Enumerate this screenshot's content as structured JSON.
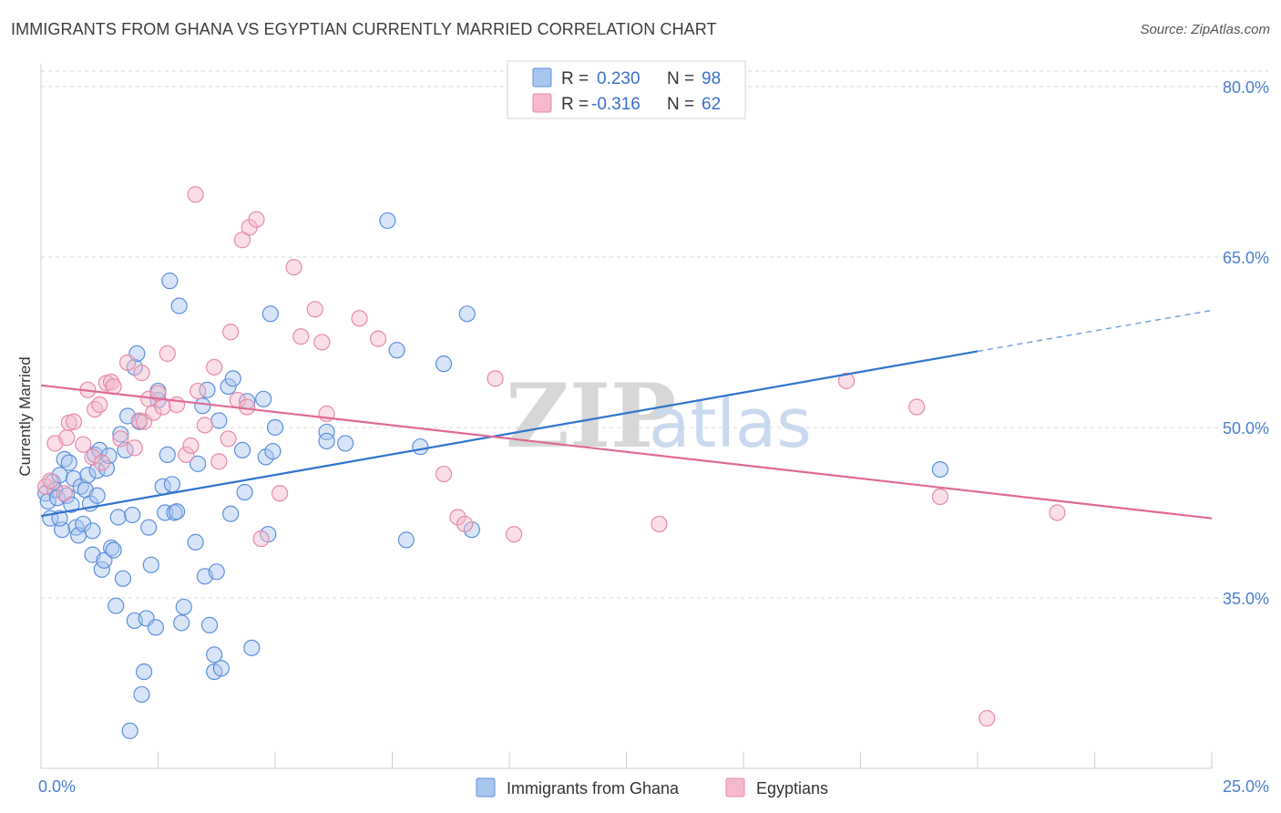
{
  "header": {
    "title": "IMMIGRANTS FROM GHANA VS EGYPTIAN CURRENTLY MARRIED CORRELATION CHART",
    "source": "Source: ZipAtlas.com"
  },
  "watermark": {
    "zip": "ZIP",
    "atlas": "atlas"
  },
  "legend_top": {
    "rows": [
      {
        "r_label": "R =",
        "r_value": "0.230",
        "n_label": "N =",
        "n_value": "98"
      },
      {
        "r_label": "R =",
        "r_value": "-0.316",
        "n_label": "N =",
        "n_value": "62"
      }
    ]
  },
  "legend_bottom": {
    "items": [
      "Immigrants from Ghana",
      "Egyptians"
    ]
  },
  "colors": {
    "ghana_fill": "#a9c6ef",
    "ghana_stroke": "#5b8fdc",
    "ghana_line": "#2f74d0",
    "egypt_fill": "#f5b9cc",
    "egypt_stroke": "#e88aa8",
    "egypt_line": "#e06a95",
    "grid": "#d9d9d9",
    "axis_text": "#4a7fd0"
  },
  "chart_data": {
    "type": "scatter",
    "title": "IMMIGRANTS FROM GHANA VS EGYPTIAN CURRENTLY MARRIED CORRELATION CHART",
    "xlabel": "",
    "ylabel": "Currently Married",
    "xlim": [
      0,
      25
    ],
    "ylim": [
      20,
      82
    ],
    "x_tick_labels": [
      "0.0%",
      "25.0%"
    ],
    "y_ticks": [
      35,
      50,
      65,
      80
    ],
    "y_tick_labels": [
      "35.0%",
      "50.0%",
      "65.0%",
      "80.0%"
    ],
    "grid": true,
    "legend_placement": "top-center",
    "series": [
      {
        "name": "Immigrants from Ghana",
        "r": 0.23,
        "n": 98,
        "trend": {
          "x0": 0,
          "y0": 42.2,
          "x1": 20,
          "y1": 56.7,
          "dashed_to_x": 25,
          "dashed_to_y": 60.3
        },
        "points": [
          [
            0.1,
            44.2
          ],
          [
            0.15,
            43.5
          ],
          [
            0.2,
            42.0
          ],
          [
            0.25,
            45.2
          ],
          [
            0.3,
            44.5
          ],
          [
            0.35,
            43.8
          ],
          [
            0.4,
            45.8
          ],
          [
            0.45,
            41.0
          ],
          [
            0.5,
            47.2
          ],
          [
            0.55,
            44.0
          ],
          [
            0.6,
            46.9
          ],
          [
            0.65,
            43.2
          ],
          [
            0.7,
            45.5
          ],
          [
            0.75,
            41.2
          ],
          [
            0.8,
            40.5
          ],
          [
            0.85,
            44.8
          ],
          [
            0.9,
            41.5
          ],
          [
            0.95,
            44.5
          ],
          [
            1.0,
            45.8
          ],
          [
            1.05,
            43.3
          ],
          [
            1.1,
            40.9
          ],
          [
            1.1,
            38.8
          ],
          [
            1.15,
            47.6
          ],
          [
            1.2,
            46.2
          ],
          [
            1.25,
            48.0
          ],
          [
            1.3,
            37.5
          ],
          [
            1.35,
            38.3
          ],
          [
            1.4,
            46.4
          ],
          [
            1.45,
            47.5
          ],
          [
            1.5,
            39.4
          ],
          [
            1.55,
            39.2
          ],
          [
            1.6,
            34.3
          ],
          [
            1.65,
            42.1
          ],
          [
            1.7,
            49.4
          ],
          [
            1.75,
            36.7
          ],
          [
            1.8,
            48.0
          ],
          [
            1.85,
            51.0
          ],
          [
            1.9,
            23.3
          ],
          [
            1.95,
            42.3
          ],
          [
            2.0,
            33.0
          ],
          [
            2.0,
            55.3
          ],
          [
            2.05,
            56.5
          ],
          [
            2.1,
            50.5
          ],
          [
            2.15,
            26.5
          ],
          [
            2.2,
            28.5
          ],
          [
            2.25,
            33.2
          ],
          [
            2.3,
            41.2
          ],
          [
            2.35,
            37.9
          ],
          [
            2.45,
            32.4
          ],
          [
            2.5,
            52.4
          ],
          [
            2.5,
            53.2
          ],
          [
            2.6,
            44.8
          ],
          [
            2.65,
            42.5
          ],
          [
            2.7,
            47.6
          ],
          [
            2.75,
            62.9
          ],
          [
            2.85,
            42.5
          ],
          [
            2.9,
            42.6
          ],
          [
            2.95,
            60.7
          ],
          [
            3.0,
            32.8
          ],
          [
            3.05,
            34.2
          ],
          [
            3.3,
            39.9
          ],
          [
            3.35,
            46.8
          ],
          [
            3.45,
            51.9
          ],
          [
            3.5,
            36.9
          ],
          [
            3.55,
            53.3
          ],
          [
            3.6,
            32.6
          ],
          [
            3.7,
            30.0
          ],
          [
            3.7,
            28.5
          ],
          [
            3.75,
            37.3
          ],
          [
            3.8,
            50.6
          ],
          [
            3.85,
            28.8
          ],
          [
            4.0,
            53.6
          ],
          [
            4.05,
            42.4
          ],
          [
            4.1,
            54.3
          ],
          [
            4.3,
            48.0
          ],
          [
            4.35,
            44.3
          ],
          [
            4.4,
            52.3
          ],
          [
            4.5,
            30.6
          ],
          [
            4.75,
            52.5
          ],
          [
            4.8,
            47.4
          ],
          [
            4.85,
            40.6
          ],
          [
            4.9,
            60.0
          ],
          [
            4.95,
            47.9
          ],
          [
            5.0,
            50.0
          ],
          [
            6.1,
            49.6
          ],
          [
            6.1,
            48.8
          ],
          [
            6.5,
            48.6
          ],
          [
            7.4,
            68.2
          ],
          [
            7.6,
            56.8
          ],
          [
            7.8,
            40.1
          ],
          [
            8.1,
            48.3
          ],
          [
            8.6,
            55.6
          ],
          [
            9.1,
            60.0
          ],
          [
            9.2,
            41.0
          ],
          [
            19.2,
            46.3
          ],
          [
            0.4,
            42.0
          ],
          [
            1.2,
            44.0
          ],
          [
            2.8,
            45.0
          ]
        ]
      },
      {
        "name": "Egyptians",
        "r": -0.316,
        "n": 62,
        "trend": {
          "x0": 0,
          "y0": 53.7,
          "x1": 25,
          "y1": 42.0
        },
        "points": [
          [
            0.1,
            44.8
          ],
          [
            0.2,
            45.3
          ],
          [
            0.3,
            48.6
          ],
          [
            0.5,
            44.2
          ],
          [
            0.55,
            49.1
          ],
          [
            0.6,
            50.4
          ],
          [
            0.7,
            50.5
          ],
          [
            0.9,
            48.5
          ],
          [
            1.0,
            53.3
          ],
          [
            1.1,
            47.4
          ],
          [
            1.15,
            51.6
          ],
          [
            1.25,
            52.0
          ],
          [
            1.3,
            46.9
          ],
          [
            1.4,
            53.9
          ],
          [
            1.5,
            54.0
          ],
          [
            1.55,
            53.6
          ],
          [
            1.7,
            49.0
          ],
          [
            1.85,
            55.7
          ],
          [
            2.0,
            48.2
          ],
          [
            2.1,
            50.6
          ],
          [
            2.15,
            54.8
          ],
          [
            2.2,
            50.5
          ],
          [
            2.3,
            52.5
          ],
          [
            2.4,
            51.3
          ],
          [
            2.5,
            53.0
          ],
          [
            2.6,
            51.8
          ],
          [
            2.7,
            56.5
          ],
          [
            2.9,
            52.0
          ],
          [
            3.1,
            47.6
          ],
          [
            3.2,
            48.4
          ],
          [
            3.3,
            70.5
          ],
          [
            3.35,
            53.2
          ],
          [
            3.5,
            50.2
          ],
          [
            3.7,
            55.3
          ],
          [
            3.8,
            47.0
          ],
          [
            4.0,
            49.0
          ],
          [
            4.05,
            58.4
          ],
          [
            4.2,
            52.4
          ],
          [
            4.3,
            66.5
          ],
          [
            4.4,
            51.8
          ],
          [
            4.45,
            67.6
          ],
          [
            4.6,
            68.3
          ],
          [
            4.7,
            40.2
          ],
          [
            5.1,
            44.2
          ],
          [
            5.4,
            64.1
          ],
          [
            5.55,
            58.0
          ],
          [
            5.85,
            60.4
          ],
          [
            6.0,
            57.5
          ],
          [
            6.1,
            51.2
          ],
          [
            6.8,
            59.6
          ],
          [
            7.2,
            57.8
          ],
          [
            8.6,
            45.9
          ],
          [
            8.9,
            42.1
          ],
          [
            9.05,
            41.5
          ],
          [
            9.7,
            54.3
          ],
          [
            10.1,
            40.6
          ],
          [
            13.2,
            41.5
          ],
          [
            17.2,
            54.1
          ],
          [
            18.7,
            51.8
          ],
          [
            19.2,
            43.9
          ],
          [
            21.7,
            42.5
          ],
          [
            20.2,
            24.4
          ]
        ]
      }
    ]
  }
}
